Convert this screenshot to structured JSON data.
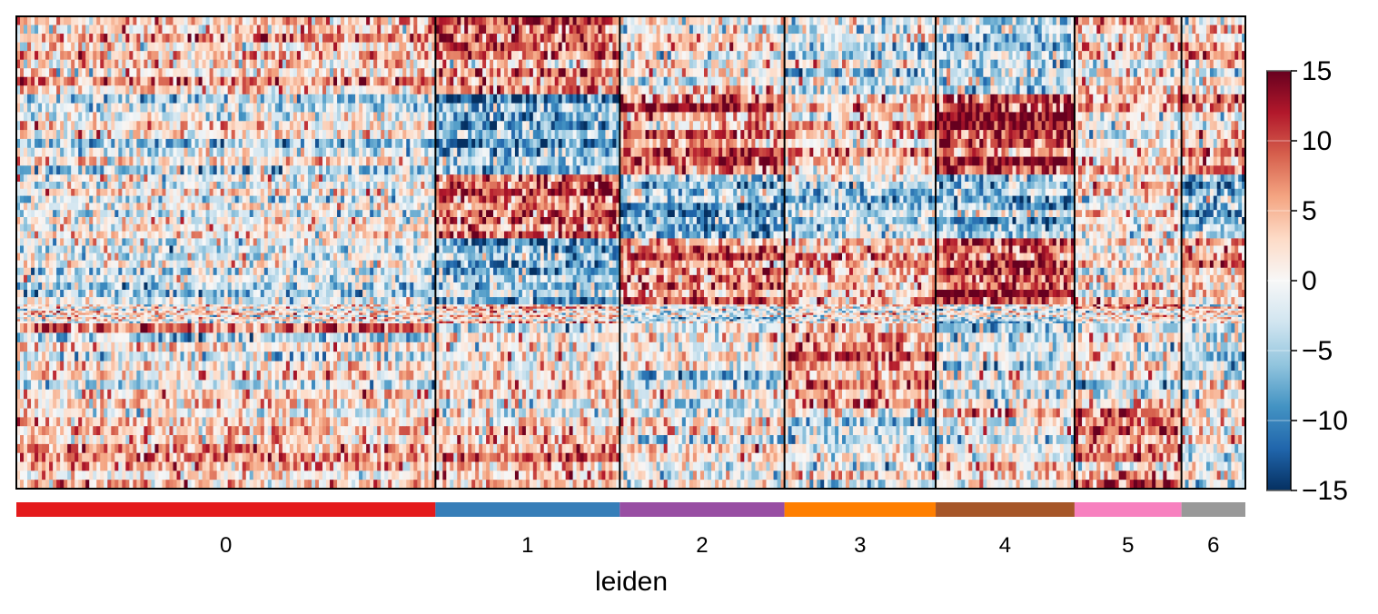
{
  "chart_data": {
    "type": "heatmap",
    "title": "",
    "xlabel": "leiden",
    "ylabel": "",
    "colormap": "RdBu_r",
    "colorbar": {
      "min": -15,
      "max": 15,
      "ticks": [
        15,
        10,
        5,
        0,
        -5,
        -10,
        -15
      ],
      "tick_labels": [
        "15",
        "10",
        "5",
        "0",
        "−5",
        "−10",
        "−15"
      ]
    },
    "groups": [
      {
        "label": "0",
        "cell_fraction": 0.341,
        "color": "#e41a1c"
      },
      {
        "label": "1",
        "cell_fraction": 0.15,
        "color": "#377eb8"
      },
      {
        "label": "2",
        "cell_fraction": 0.134,
        "color": "#984ea3"
      },
      {
        "label": "3",
        "cell_fraction": 0.123,
        "color": "#ff7f00"
      },
      {
        "label": "4",
        "cell_fraction": 0.113,
        "color": "#a65628"
      },
      {
        "label": "5",
        "cell_fraction": 0.087,
        "color": "#f781bf"
      },
      {
        "label": "6",
        "cell_fraction": 0.052,
        "color": "#999999"
      }
    ],
    "gene_blocks": [
      {
        "gene_fraction": 0.165,
        "group_mean": [
          3,
          7,
          1,
          -1,
          -3,
          4,
          2
        ]
      },
      {
        "gene_fraction": 0.17,
        "group_mean": [
          -2,
          -7,
          8,
          3,
          11,
          2,
          5
        ]
      },
      {
        "gene_fraction": 0.135,
        "group_mean": [
          0,
          9,
          -5,
          -4,
          -6,
          1,
          -5
        ]
      },
      {
        "gene_fraction": 0.14,
        "group_mean": [
          -2,
          -7,
          8,
          3,
          11,
          2,
          5
        ]
      },
      {
        "gene_fraction": 0.04,
        "group_mean": [
          1,
          3,
          -1,
          -1,
          -2,
          1,
          2
        ]
      },
      {
        "gene_fraction": 0.18,
        "group_mean": [
          1,
          2,
          -1,
          7,
          -2,
          -1,
          -2
        ]
      },
      {
        "gene_fraction": 0.17,
        "group_mean": [
          3,
          4,
          1,
          -1,
          0,
          7,
          -1
        ]
      }
    ]
  }
}
